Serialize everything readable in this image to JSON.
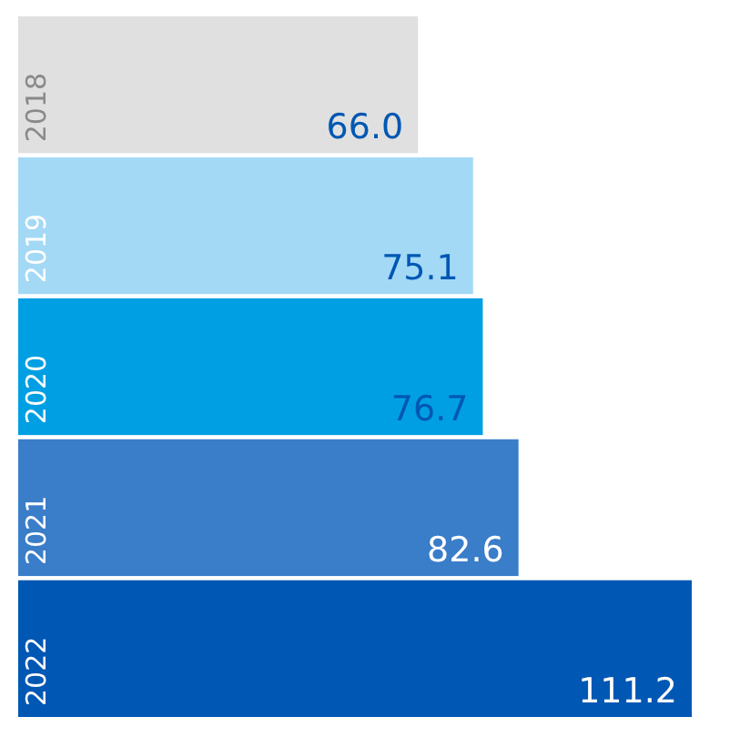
{
  "chart_data": {
    "type": "bar",
    "orientation": "horizontal",
    "categories": [
      "2018",
      "2019",
      "2020",
      "2021",
      "2022"
    ],
    "values": [
      66.0,
      75.1,
      76.7,
      82.6,
      111.2
    ],
    "value_labels": [
      "66.0",
      "75.1",
      "76.7",
      "82.6",
      "111.2"
    ],
    "colors": [
      "#e0e0e0",
      "#a3d9f5",
      "#009fe3",
      "#3a7dc9",
      "#0057b4"
    ],
    "xlim": [
      0,
      111.2
    ]
  }
}
